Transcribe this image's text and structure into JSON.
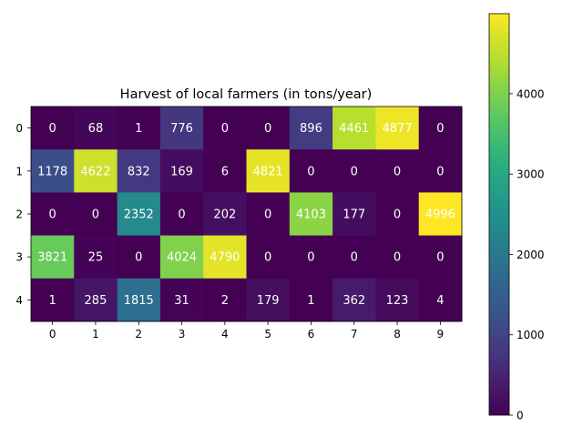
{
  "chart_data": {
    "type": "heatmap",
    "title": "Harvest of local farmers (in tons/year)",
    "x_ticks": [
      "0",
      "1",
      "2",
      "3",
      "4",
      "5",
      "6",
      "7",
      "8",
      "9"
    ],
    "y_ticks": [
      "0",
      "1",
      "2",
      "3",
      "4"
    ],
    "values": [
      [
        0,
        68,
        1,
        776,
        0,
        0,
        896,
        4461,
        4877,
        0
      ],
      [
        1178,
        4622,
        832,
        169,
        6,
        4821,
        0,
        0,
        0,
        0
      ],
      [
        0,
        0,
        2352,
        0,
        202,
        0,
        4103,
        177,
        0,
        4996
      ],
      [
        3821,
        25,
        0,
        4024,
        4790,
        0,
        0,
        0,
        0,
        0
      ],
      [
        1,
        285,
        1815,
        31,
        2,
        179,
        1,
        362,
        123,
        4
      ]
    ],
    "colormap": "viridis",
    "vmin": 0,
    "vmax": 4996,
    "colorbar_ticks": [
      "0",
      "1000",
      "2000",
      "3000",
      "4000"
    ],
    "colorbar_tick_values": [
      0,
      1000,
      2000,
      3000,
      4000
    ]
  }
}
